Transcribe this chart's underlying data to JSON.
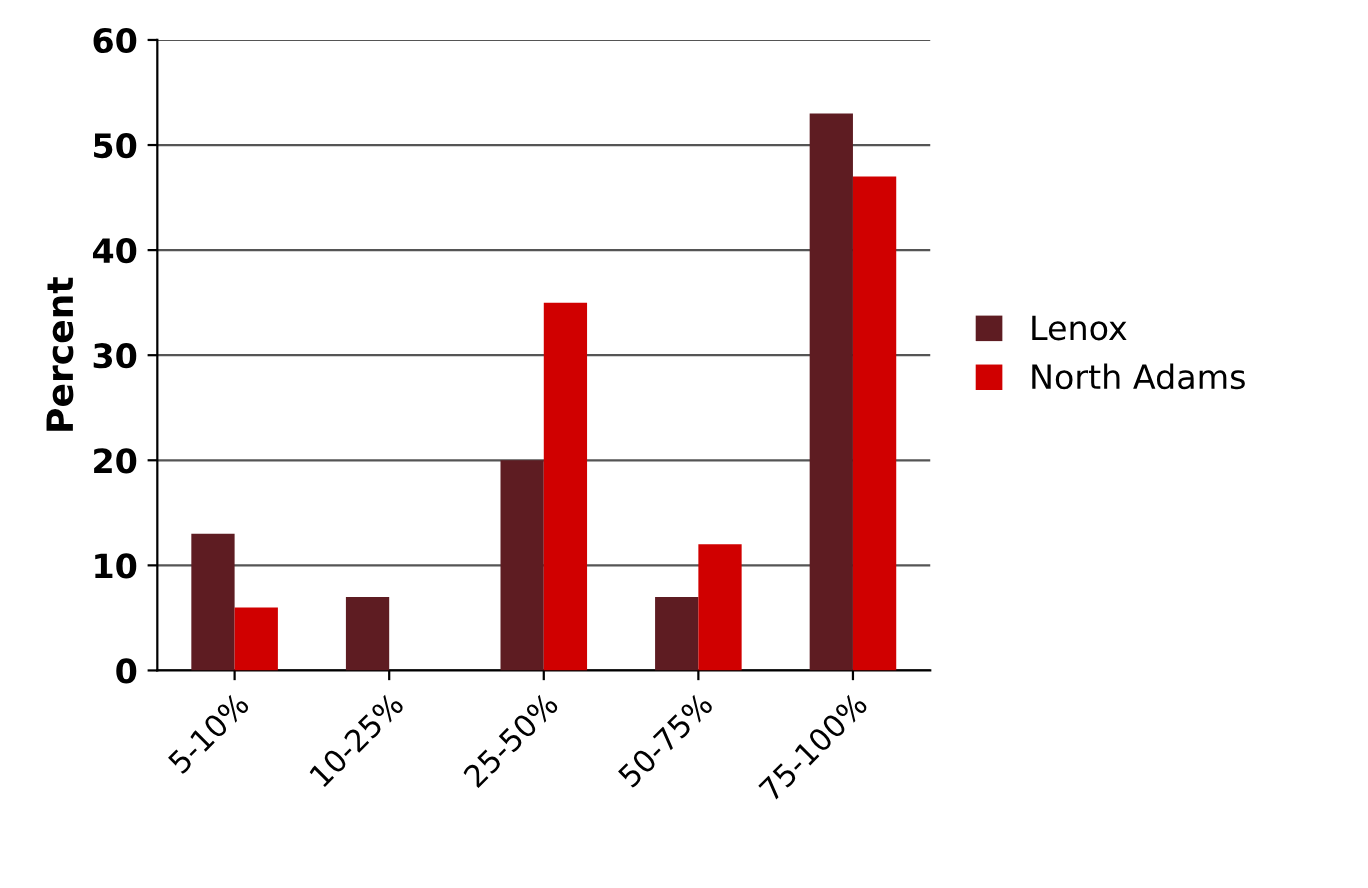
{
  "chart_data": {
    "type": "bar",
    "ylabel": "Percent",
    "categories": [
      "5-10%",
      "10-25%",
      "25-50%",
      "50-75%",
      "75-100%"
    ],
    "series": [
      {
        "name": "Lenox",
        "color": "#5e1c22",
        "values": [
          13,
          7,
          20,
          7,
          53
        ]
      },
      {
        "name": "North Adams",
        "color": "#d00000",
        "values": [
          6,
          0,
          35,
          12,
          47
        ]
      }
    ],
    "ylim": [
      0,
      60
    ],
    "yticks": [
      0,
      10,
      20,
      30,
      40,
      50,
      60
    ],
    "grid": "y",
    "legend": "right"
  }
}
